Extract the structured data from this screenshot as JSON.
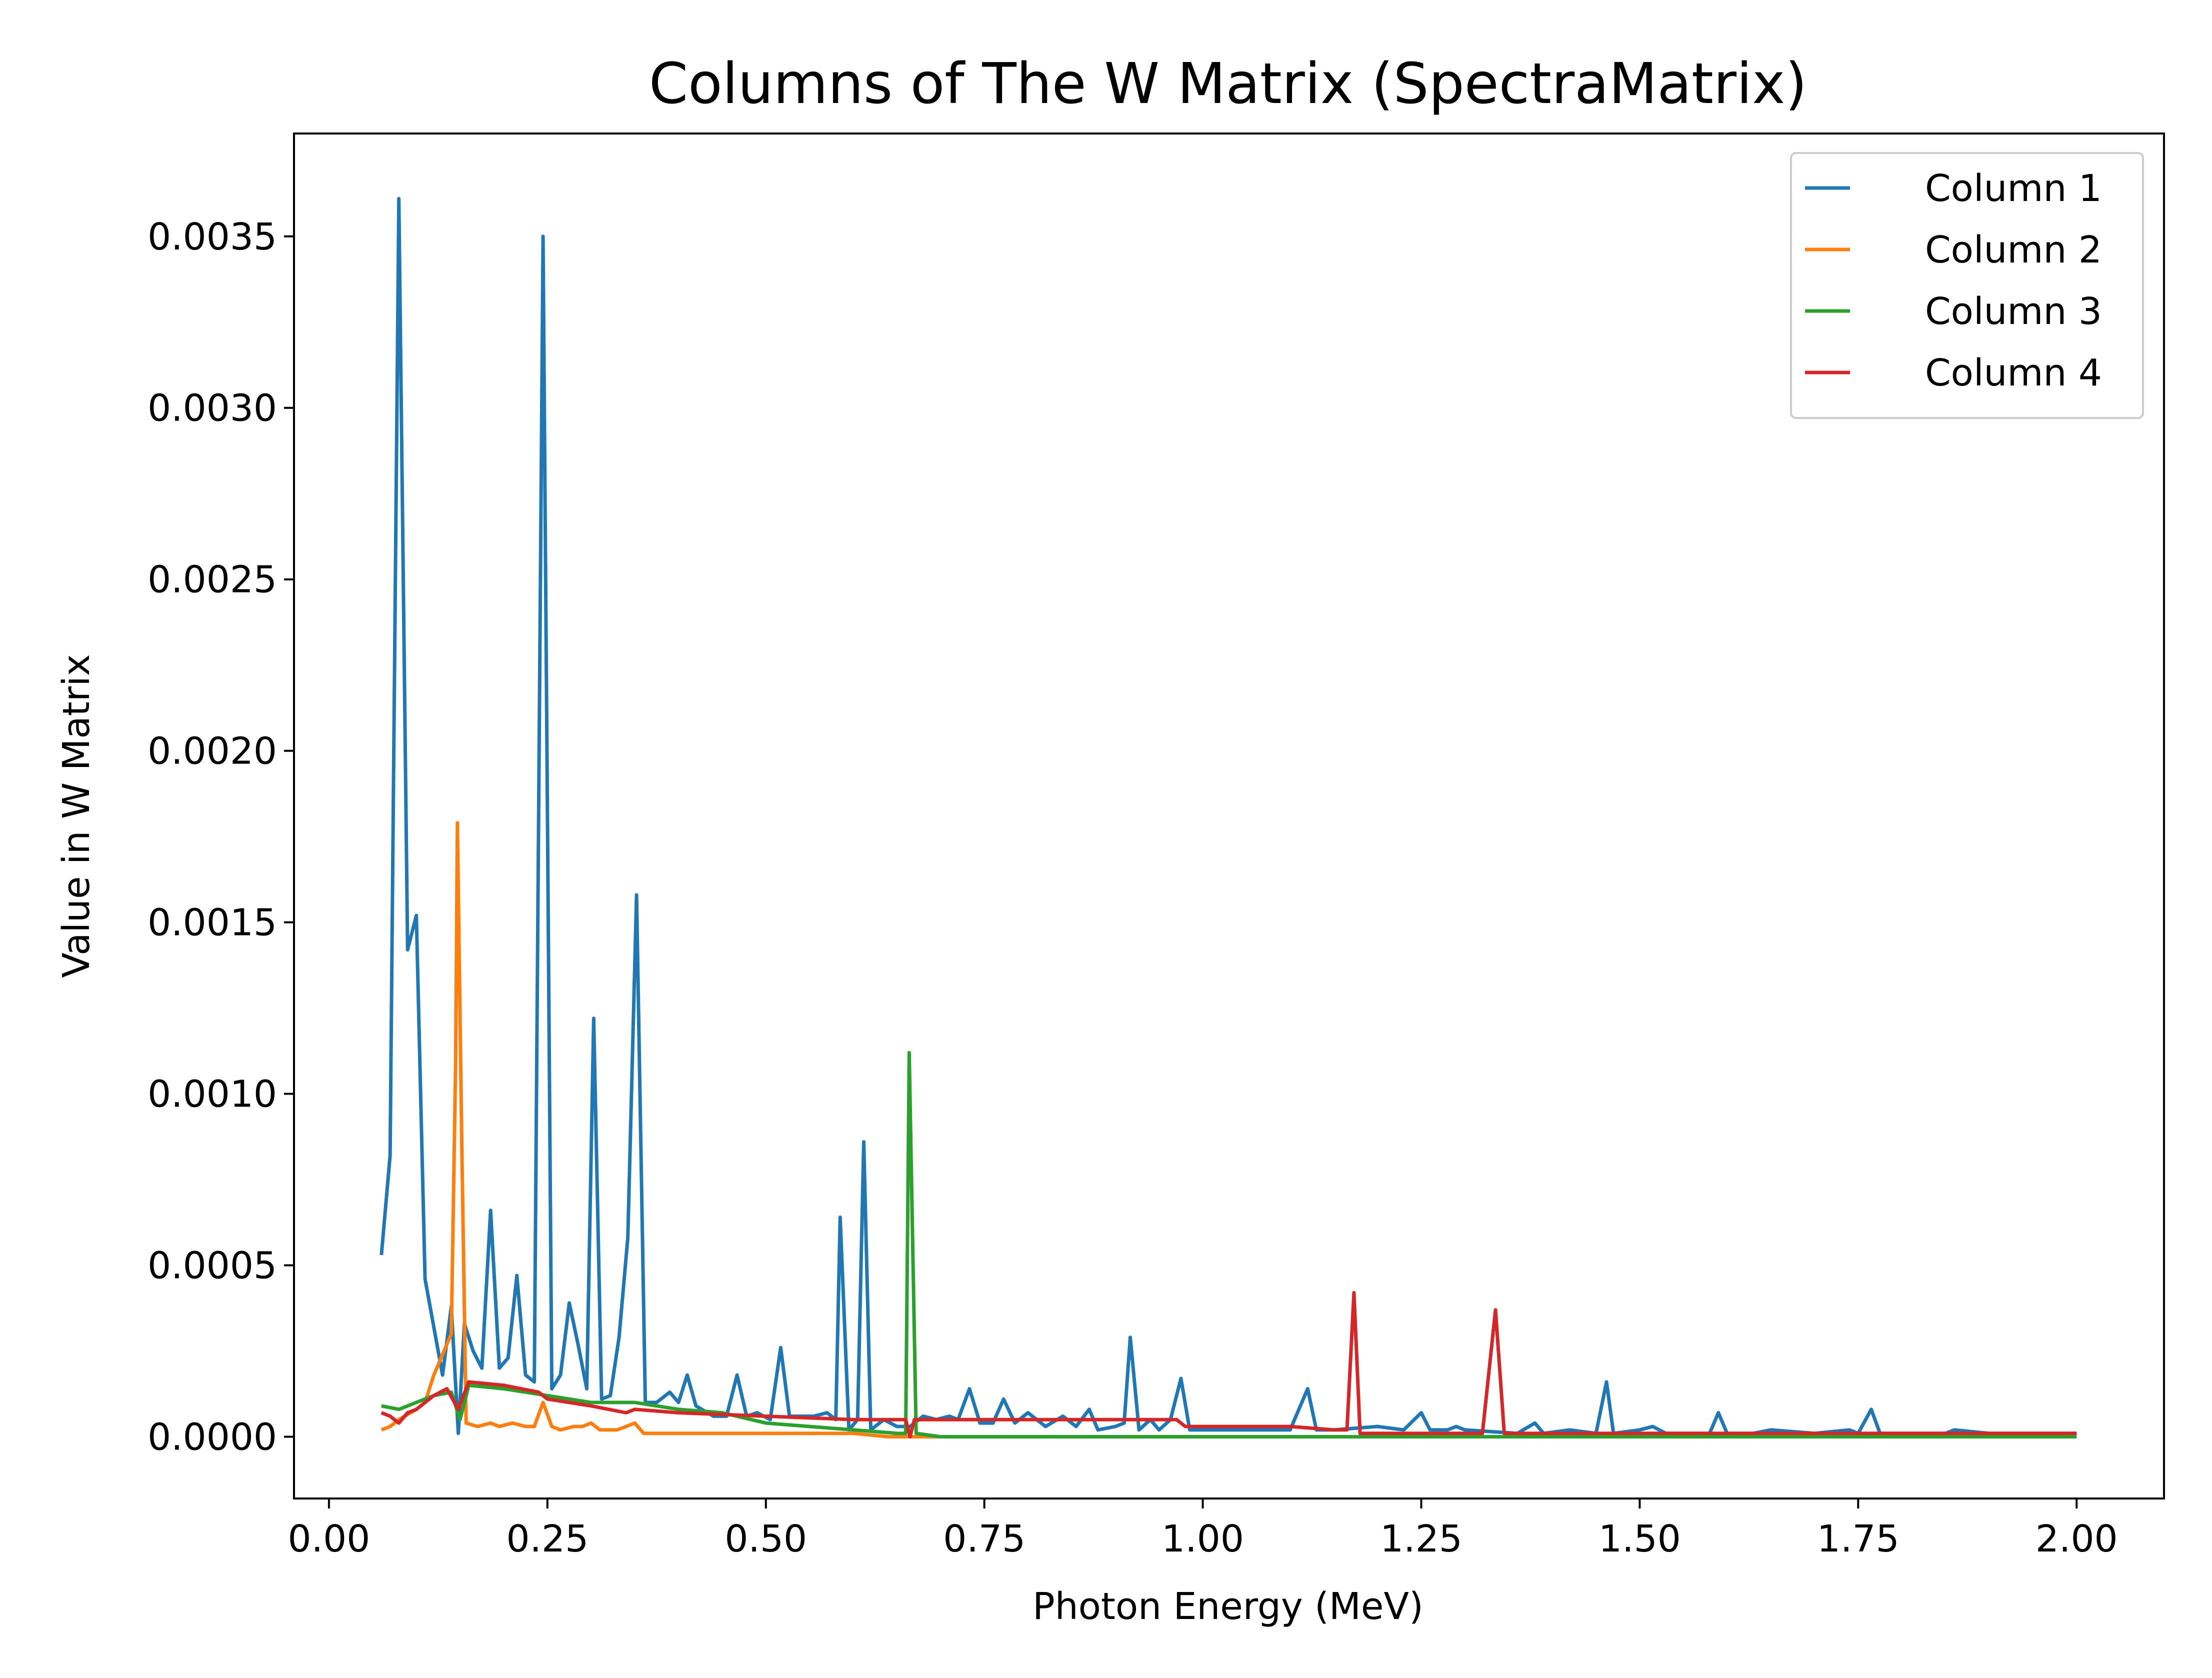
{
  "chart_data": {
    "type": "line",
    "title": "Columns of The W Matrix (SpectraMatrix)",
    "xlabel": "Photon Energy (MeV)",
    "ylabel": "Value in W Matrix",
    "xlim": [
      -0.04,
      2.1
    ],
    "ylim": [
      -0.00018,
      0.0038
    ],
    "x_ticks": [
      0.0,
      0.25,
      0.5,
      0.75,
      1.0,
      1.25,
      1.5,
      1.75,
      2.0
    ],
    "x_tick_labels": [
      "0.00",
      "0.25",
      "0.50",
      "0.75",
      "1.00",
      "1.25",
      "1.50",
      "1.75",
      "2.00"
    ],
    "y_ticks": [
      0.0,
      0.0005,
      0.001,
      0.0015,
      0.002,
      0.0025,
      0.003,
      0.0035
    ],
    "y_tick_labels": [
      "0.0000",
      "0.0005",
      "0.0010",
      "0.0015",
      "0.0020",
      "0.0025",
      "0.0030",
      "0.0035"
    ],
    "grid": false,
    "legend_position": "top-right",
    "series": [
      {
        "name": "Column 1",
        "color": "#1f77b4",
        "points": [
          [
            0.06,
            0.00053
          ],
          [
            0.07,
            0.00082
          ],
          [
            0.08,
            0.00361
          ],
          [
            0.09,
            0.00142
          ],
          [
            0.1,
            0.00152
          ],
          [
            0.11,
            0.00046
          ],
          [
            0.12,
            0.00032
          ],
          [
            0.13,
            0.00018
          ],
          [
            0.14,
            0.00038
          ],
          [
            0.148,
            1e-05
          ],
          [
            0.155,
            0.00033
          ],
          [
            0.165,
            0.00025
          ],
          [
            0.175,
            0.0002
          ],
          [
            0.185,
            0.00066
          ],
          [
            0.195,
            0.0002
          ],
          [
            0.205,
            0.00023
          ],
          [
            0.215,
            0.00047
          ],
          [
            0.225,
            0.00018
          ],
          [
            0.235,
            0.00016
          ],
          [
            0.245,
            0.0035
          ],
          [
            0.255,
            0.00014
          ],
          [
            0.265,
            0.00018
          ],
          [
            0.275,
            0.00039
          ],
          [
            0.285,
            0.00027
          ],
          [
            0.295,
            0.00014
          ],
          [
            0.303,
            0.00122
          ],
          [
            0.312,
            0.00011
          ],
          [
            0.322,
            0.00012
          ],
          [
            0.332,
            0.00029
          ],
          [
            0.342,
            0.00058
          ],
          [
            0.352,
            0.00158
          ],
          [
            0.362,
            0.0001
          ],
          [
            0.375,
            0.0001
          ],
          [
            0.39,
            0.00013
          ],
          [
            0.4,
            0.0001
          ],
          [
            0.41,
            0.00018
          ],
          [
            0.42,
            9e-05
          ],
          [
            0.44,
            6e-05
          ],
          [
            0.455,
            6e-05
          ],
          [
            0.467,
            0.00018
          ],
          [
            0.478,
            6e-05
          ],
          [
            0.49,
            7e-05
          ],
          [
            0.505,
            5e-05
          ],
          [
            0.517,
            0.00026
          ],
          [
            0.527,
            6e-05
          ],
          [
            0.54,
            6e-05
          ],
          [
            0.555,
            6e-05
          ],
          [
            0.57,
            7e-05
          ],
          [
            0.58,
            5e-05
          ],
          [
            0.585,
            0.00064
          ],
          [
            0.595,
            2e-05
          ],
          [
            0.605,
            5e-05
          ],
          [
            0.612,
            0.00086
          ],
          [
            0.62,
            2e-05
          ],
          [
            0.635,
            5e-05
          ],
          [
            0.65,
            3e-05
          ],
          [
            0.665,
            3e-05
          ],
          [
            0.68,
            6e-05
          ],
          [
            0.695,
            5e-05
          ],
          [
            0.71,
            6e-05
          ],
          [
            0.72,
            5e-05
          ],
          [
            0.733,
            0.00014
          ],
          [
            0.745,
            4e-05
          ],
          [
            0.76,
            4e-05
          ],
          [
            0.772,
            0.00011
          ],
          [
            0.785,
            4e-05
          ],
          [
            0.8,
            7e-05
          ],
          [
            0.82,
            3e-05
          ],
          [
            0.84,
            6e-05
          ],
          [
            0.855,
            3e-05
          ],
          [
            0.87,
            8e-05
          ],
          [
            0.88,
            2e-05
          ],
          [
            0.9,
            3e-05
          ],
          [
            0.91,
            4e-05
          ],
          [
            0.917,
            0.00029
          ],
          [
            0.927,
            2e-05
          ],
          [
            0.94,
            5e-05
          ],
          [
            0.95,
            2e-05
          ],
          [
            0.963,
            5e-05
          ],
          [
            0.975,
            0.00017
          ],
          [
            0.985,
            2e-05
          ],
          [
            1.0,
            2e-05
          ],
          [
            1.05,
            2e-05
          ],
          [
            1.1,
            2e-05
          ],
          [
            1.12,
            0.00014
          ],
          [
            1.13,
            2e-05
          ],
          [
            1.15,
            2e-05
          ],
          [
            1.2,
            3e-05
          ],
          [
            1.23,
            2e-05
          ],
          [
            1.25,
            7e-05
          ],
          [
            1.26,
            2e-05
          ],
          [
            1.28,
            2e-05
          ],
          [
            1.29,
            3e-05
          ],
          [
            1.3,
            2e-05
          ],
          [
            1.36,
            1e-05
          ],
          [
            1.38,
            4e-05
          ],
          [
            1.39,
            1e-05
          ],
          [
            1.42,
            2e-05
          ],
          [
            1.45,
            1e-05
          ],
          [
            1.462,
            0.00016
          ],
          [
            1.47,
            1e-05
          ],
          [
            1.5,
            2e-05
          ],
          [
            1.515,
            3e-05
          ],
          [
            1.53,
            1e-05
          ],
          [
            1.58,
            1e-05
          ],
          [
            1.59,
            7e-05
          ],
          [
            1.6,
            1e-05
          ],
          [
            1.63,
            1e-05
          ],
          [
            1.65,
            2e-05
          ],
          [
            1.7,
            1e-05
          ],
          [
            1.74,
            2e-05
          ],
          [
            1.75,
            1e-05
          ],
          [
            1.765,
            8e-05
          ],
          [
            1.775,
            1e-05
          ],
          [
            1.85,
            1e-05
          ],
          [
            1.86,
            2e-05
          ],
          [
            1.9,
            1e-05
          ],
          [
            2.0,
            1e-05
          ]
        ]
      },
      {
        "name": "Column 2",
        "color": "#ff7f0e",
        "points": [
          [
            0.06,
            2e-05
          ],
          [
            0.07,
            3e-05
          ],
          [
            0.08,
            5e-05
          ],
          [
            0.1,
            8e-05
          ],
          [
            0.11,
            0.0001
          ],
          [
            0.12,
            0.00018
          ],
          [
            0.13,
            0.00024
          ],
          [
            0.14,
            0.0003
          ],
          [
            0.145,
            0.0011
          ],
          [
            0.147,
            0.00179
          ],
          [
            0.152,
            0.00085
          ],
          [
            0.157,
            4e-05
          ],
          [
            0.17,
            3e-05
          ],
          [
            0.185,
            4e-05
          ],
          [
            0.195,
            3e-05
          ],
          [
            0.21,
            4e-05
          ],
          [
            0.225,
            3e-05
          ],
          [
            0.235,
            3e-05
          ],
          [
            0.245,
            0.0001
          ],
          [
            0.255,
            3e-05
          ],
          [
            0.265,
            2e-05
          ],
          [
            0.28,
            3e-05
          ],
          [
            0.29,
            3e-05
          ],
          [
            0.3,
            4e-05
          ],
          [
            0.31,
            2e-05
          ],
          [
            0.33,
            2e-05
          ],
          [
            0.35,
            4e-05
          ],
          [
            0.36,
            1e-05
          ],
          [
            0.4,
            1e-05
          ],
          [
            0.5,
            1e-05
          ],
          [
            0.6,
            1e-05
          ],
          [
            0.64,
            0.0
          ],
          [
            0.7,
            0.0
          ],
          [
            1.0,
            0.0
          ],
          [
            1.5,
            0.0
          ],
          [
            2.0,
            0.0
          ]
        ]
      },
      {
        "name": "Column 3",
        "color": "#2ca02c",
        "points": [
          [
            0.06,
            9e-05
          ],
          [
            0.08,
            8e-05
          ],
          [
            0.1,
            0.0001
          ],
          [
            0.12,
            0.00012
          ],
          [
            0.14,
            0.00013
          ],
          [
            0.15,
            5e-05
          ],
          [
            0.16,
            0.00015
          ],
          [
            0.2,
            0.00014
          ],
          [
            0.25,
            0.00012
          ],
          [
            0.3,
            0.0001
          ],
          [
            0.35,
            0.0001
          ],
          [
            0.4,
            8e-05
          ],
          [
            0.45,
            7e-05
          ],
          [
            0.5,
            4e-05
          ],
          [
            0.55,
            3e-05
          ],
          [
            0.6,
            2e-05
          ],
          [
            0.65,
            1e-05
          ],
          [
            0.66,
            1e-05
          ],
          [
            0.664,
            0.00112
          ],
          [
            0.672,
            1e-05
          ],
          [
            0.7,
            0.0
          ],
          [
            0.8,
            0.0
          ],
          [
            1.0,
            0.0
          ],
          [
            1.2,
            0.0
          ],
          [
            1.5,
            0.0
          ],
          [
            2.0,
            0.0
          ]
        ]
      },
      {
        "name": "Column 4",
        "color": "#d62728",
        "points": [
          [
            0.06,
            7e-05
          ],
          [
            0.07,
            6e-05
          ],
          [
            0.08,
            4e-05
          ],
          [
            0.09,
            7e-05
          ],
          [
            0.1,
            8e-05
          ],
          [
            0.11,
            0.0001
          ],
          [
            0.12,
            0.00012
          ],
          [
            0.135,
            0.00014
          ],
          [
            0.148,
            8e-05
          ],
          [
            0.16,
            0.00016
          ],
          [
            0.2,
            0.00015
          ],
          [
            0.24,
            0.00013
          ],
          [
            0.25,
            0.00011
          ],
          [
            0.3,
            9e-05
          ],
          [
            0.34,
            7e-05
          ],
          [
            0.35,
            8e-05
          ],
          [
            0.4,
            7e-05
          ],
          [
            0.5,
            6e-05
          ],
          [
            0.6,
            5e-05
          ],
          [
            0.66,
            5e-05
          ],
          [
            0.665,
            0.0
          ],
          [
            0.67,
            5e-05
          ],
          [
            0.75,
            5e-05
          ],
          [
            0.85,
            5e-05
          ],
          [
            0.97,
            5e-05
          ],
          [
            0.98,
            3e-05
          ],
          [
            1.0,
            3e-05
          ],
          [
            1.1,
            3e-05
          ],
          [
            1.15,
            2e-05
          ],
          [
            1.165,
            2e-05
          ],
          [
            1.173,
            0.00042
          ],
          [
            1.18,
            1e-05
          ],
          [
            1.25,
            1e-05
          ],
          [
            1.32,
            1e-05
          ],
          [
            1.335,
            0.00037
          ],
          [
            1.345,
            1e-05
          ],
          [
            1.5,
            1e-05
          ],
          [
            1.75,
            1e-05
          ],
          [
            2.0,
            1e-05
          ]
        ]
      }
    ]
  }
}
